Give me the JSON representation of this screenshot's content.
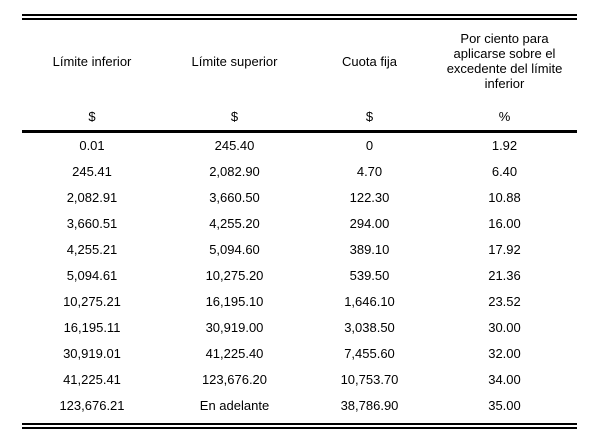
{
  "table": {
    "headers": [
      "Límite inferior",
      "Límite superior",
      "Cuota fija",
      "Por ciento para aplicarse sobre el excedente del límite inferior"
    ],
    "units": [
      "$",
      "$",
      "$",
      "%"
    ],
    "rows": [
      [
        "0.01",
        "245.40",
        "0",
        "1.92"
      ],
      [
        "245.41",
        "2,082.90",
        "4.70",
        "6.40"
      ],
      [
        "2,082.91",
        "3,660.50",
        "122.30",
        "10.88"
      ],
      [
        "3,660.51",
        "4,255.20",
        "294.00",
        "16.00"
      ],
      [
        "4,255.21",
        "5,094.60",
        "389.10",
        "17.92"
      ],
      [
        "5,094.61",
        "10,275.20",
        "539.50",
        "21.36"
      ],
      [
        "10,275.21",
        "16,195.10",
        "1,646.10",
        "23.52"
      ],
      [
        "16,195.11",
        "30,919.00",
        "3,038.50",
        "30.00"
      ],
      [
        "30,919.01",
        "41,225.40",
        "7,455.60",
        "32.00"
      ],
      [
        "41,225.41",
        "123,676.20",
        "10,753.70",
        "34.00"
      ],
      [
        "123,676.21",
        "En adelante",
        "38,786.90",
        "35.00"
      ]
    ]
  }
}
